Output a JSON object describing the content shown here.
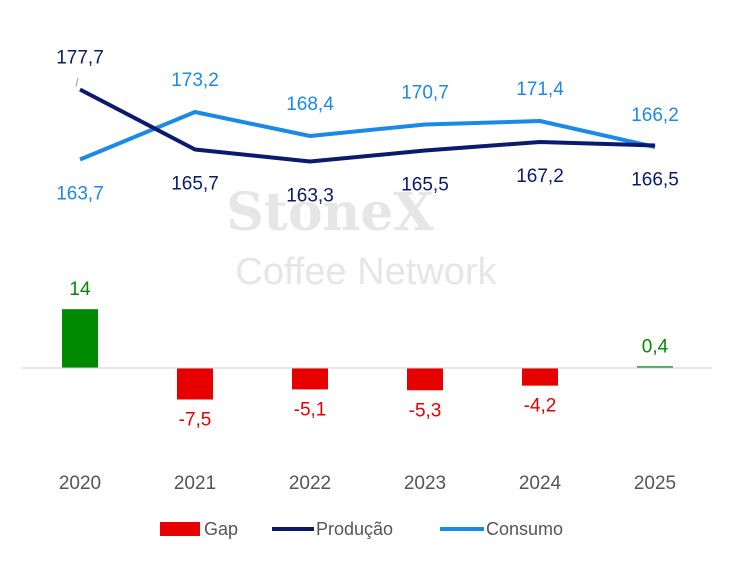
{
  "chart_data": {
    "type": "line+bar",
    "categories": [
      "2020",
      "2021",
      "2022",
      "2023",
      "2024",
      "2025"
    ],
    "series": [
      {
        "name": "Gap",
        "type": "bar",
        "values": [
          14,
          -7.5,
          -5.1,
          -5.3,
          -4.2,
          0.4
        ],
        "labels": [
          "14",
          "-7,5",
          "-5,1",
          "-5,3",
          "-4,2",
          "0,4"
        ]
      },
      {
        "name": "Produção",
        "type": "line",
        "values": [
          177.7,
          165.7,
          163.3,
          165.5,
          167.2,
          166.5
        ],
        "labels": [
          "177,7",
          "165,7",
          "163,3",
          "165,5",
          "167,2",
          "166,5"
        ]
      },
      {
        "name": "Consumo",
        "type": "line",
        "values": [
          163.7,
          173.2,
          168.4,
          170.7,
          171.4,
          166.2
        ],
        "labels": [
          "163,7",
          "173,2",
          "168,4",
          "170,7",
          "171,4",
          "166,2"
        ]
      }
    ],
    "legend": "bottom-center",
    "grid": false,
    "title": "",
    "xlabel": "",
    "ylabel": ""
  },
  "colors": {
    "gap_positive": "#008a00",
    "gap_negative": "#e60000",
    "producao": "#0a1a6e",
    "consumo": "#1a8ae6"
  },
  "watermark": {
    "line1": "StoneX",
    "line2": "Coffee Network"
  }
}
